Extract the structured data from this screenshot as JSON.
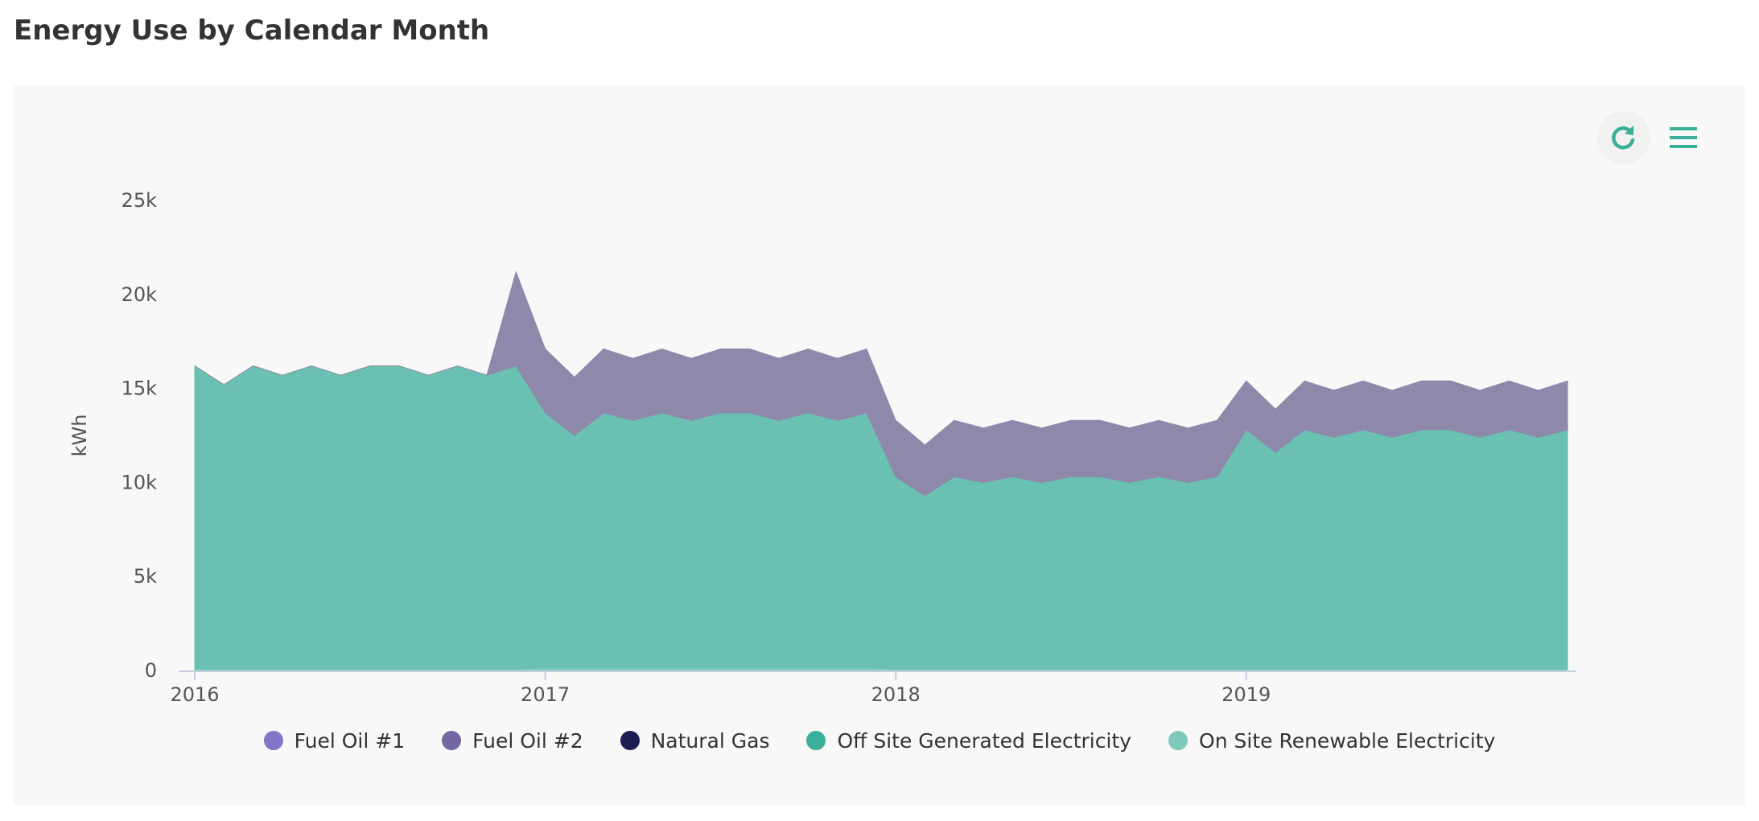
{
  "page": {
    "title": "Energy Use by Calendar Month"
  },
  "toolbar": {
    "refresh_icon": "refresh-icon",
    "menu_icon": "hamburger-menu-icon"
  },
  "colors": {
    "panel_bg": "#f8f8f8",
    "accent": "#3aaf99",
    "axis_text": "#555555",
    "fuel_oil_1": "#8075c9",
    "fuel_oil_2": "#7466a0",
    "natural_gas": "#1c1d55",
    "off_site_electricity": "#3aaf99",
    "on_site_renewable": "#7fc9bb"
  },
  "chart_data": {
    "type": "area",
    "stacked": true,
    "title": "",
    "xlabel": "",
    "ylabel": "kWh",
    "ylim": [
      0,
      25000
    ],
    "yticks": [
      0,
      5000,
      10000,
      15000,
      20000,
      25000
    ],
    "ytick_labels": [
      "0",
      "5k",
      "10k",
      "15k",
      "20k",
      "25k"
    ],
    "xticks": [
      "2016",
      "2017",
      "2018",
      "2019"
    ],
    "x_start": "2016-01",
    "x": [
      "2016-01",
      "2016-02",
      "2016-03",
      "2016-04",
      "2016-05",
      "2016-06",
      "2016-07",
      "2016-08",
      "2016-09",
      "2016-10",
      "2016-11",
      "2016-12",
      "2017-01",
      "2017-02",
      "2017-03",
      "2017-04",
      "2017-05",
      "2017-06",
      "2017-07",
      "2017-08",
      "2017-09",
      "2017-10",
      "2017-11",
      "2017-12",
      "2018-01",
      "2018-02",
      "2018-03",
      "2018-04",
      "2018-05",
      "2018-06",
      "2018-07",
      "2018-08",
      "2018-09",
      "2018-10",
      "2018-11",
      "2018-12",
      "2019-01",
      "2019-02",
      "2019-03",
      "2019-04",
      "2019-05",
      "2019-06",
      "2019-07",
      "2019-08",
      "2019-09",
      "2019-10",
      "2019-11",
      "2019-12"
    ],
    "legend_position": "bottom",
    "series": [
      {
        "name": "On Site Renewable Electricity",
        "color": "#7fc9bb",
        "values": [
          100,
          100,
          100,
          100,
          100,
          100,
          100,
          100,
          100,
          100,
          100,
          100,
          150,
          150,
          150,
          150,
          150,
          150,
          150,
          150,
          150,
          150,
          150,
          150,
          100,
          100,
          100,
          100,
          100,
          100,
          100,
          100,
          100,
          100,
          100,
          100,
          100,
          100,
          100,
          100,
          100,
          100,
          100,
          100,
          100,
          100,
          100,
          100
        ]
      },
      {
        "name": "Off Site Generated Electricity",
        "color": "#6ac1b1",
        "values": [
          16100,
          15100,
          16100,
          15600,
          16100,
          15600,
          16100,
          16100,
          15600,
          16100,
          15600,
          16100,
          13550,
          12350,
          13550,
          13150,
          13550,
          13150,
          13550,
          13550,
          13150,
          13550,
          13150,
          13550,
          10200,
          9200,
          10200,
          9900,
          10200,
          9900,
          10200,
          10200,
          9900,
          10200,
          9900,
          10200,
          12700,
          11500,
          12700,
          12300,
          12700,
          12300,
          12700,
          12700,
          12300,
          12700,
          12300,
          12700
        ]
      },
      {
        "name": "Natural Gas",
        "color": "#1c1d55",
        "values": [
          0,
          0,
          0,
          0,
          0,
          0,
          0,
          0,
          0,
          0,
          0,
          0,
          0,
          0,
          0,
          0,
          0,
          0,
          0,
          0,
          0,
          0,
          0,
          0,
          0,
          0,
          0,
          0,
          0,
          0,
          0,
          0,
          0,
          0,
          0,
          0,
          0,
          0,
          0,
          0,
          0,
          0,
          0,
          0,
          0,
          0,
          0,
          0
        ]
      },
      {
        "name": "Fuel Oil #2",
        "color": "#8e89ab",
        "values": [
          0,
          0,
          0,
          0,
          0,
          0,
          0,
          0,
          0,
          0,
          0,
          5000,
          3400,
          3100,
          3400,
          3300,
          3400,
          3300,
          3400,
          3400,
          3300,
          3400,
          3300,
          3400,
          3000,
          2700,
          3000,
          2900,
          3000,
          2900,
          3000,
          3000,
          2900,
          3000,
          2900,
          3000,
          2600,
          2300,
          2600,
          2500,
          2600,
          2500,
          2600,
          2600,
          2500,
          2600,
          2500,
          2600
        ]
      },
      {
        "name": "Fuel Oil #1",
        "color": "#8075c9",
        "values": [
          0,
          0,
          0,
          0,
          0,
          0,
          0,
          0,
          0,
          0,
          0,
          0,
          0,
          0,
          0,
          0,
          0,
          0,
          0,
          0,
          0,
          0,
          0,
          0,
          0,
          0,
          0,
          0,
          0,
          0,
          0,
          0,
          0,
          0,
          0,
          0,
          0,
          0,
          0,
          0,
          0,
          0,
          0,
          0,
          0,
          0,
          0,
          0
        ]
      }
    ]
  },
  "legend": [
    {
      "label": "Fuel Oil #1",
      "color": "#8075c9"
    },
    {
      "label": "Fuel Oil #2",
      "color": "#7466a0"
    },
    {
      "label": "Natural Gas",
      "color": "#1c1d55"
    },
    {
      "label": "Off Site Generated Electricity",
      "color": "#3aaf99"
    },
    {
      "label": "On Site Renewable Electricity",
      "color": "#7fc9bb"
    }
  ]
}
